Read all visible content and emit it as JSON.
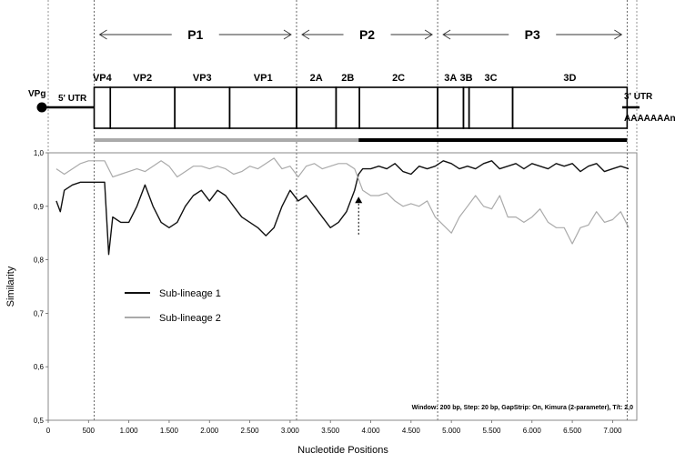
{
  "chart_data": {
    "type": "line",
    "xlabel": "Nucleotide Positions",
    "ylabel": "Similarity",
    "xlim": [
      0,
      7300
    ],
    "ylim": [
      0.5,
      1.0
    ],
    "x_ticks": [
      0,
      500,
      1000,
      1500,
      2000,
      2500,
      3000,
      3500,
      4000,
      4500,
      5000,
      5500,
      6000,
      6500,
      7000
    ],
    "x_tick_labels": [
      "0",
      "500",
      "1.000",
      "1.500",
      "2.000",
      "2.500",
      "3.000",
      "3.500",
      "4.000",
      "4.500",
      "5.000",
      "5.500",
      "6.000",
      "6.500",
      "7.000"
    ],
    "y_ticks": [
      0.5,
      0.6,
      0.7,
      0.8,
      0.9,
      1.0
    ],
    "y_tick_labels": [
      "0,5",
      "0,6",
      "0,7",
      "0,8",
      "0,9",
      "1,0"
    ],
    "grid": false,
    "legend_position": "middle-left",
    "series": [
      {
        "name": "Sub-lineage 1",
        "color": "#111111",
        "x": [
          100,
          150,
          200,
          300,
          400,
          500,
          600,
          700,
          750,
          800,
          900,
          1000,
          1100,
          1200,
          1300,
          1400,
          1500,
          1600,
          1700,
          1800,
          1900,
          2000,
          2100,
          2200,
          2300,
          2400,
          2500,
          2600,
          2700,
          2800,
          2900,
          3000,
          3100,
          3200,
          3300,
          3400,
          3500,
          3600,
          3700,
          3800,
          3850,
          3900,
          4000,
          4100,
          4200,
          4300,
          4400,
          4500,
          4600,
          4700,
          4800,
          4900,
          5000,
          5100,
          5200,
          5300,
          5400,
          5500,
          5600,
          5700,
          5800,
          5900,
          6000,
          6100,
          6200,
          6300,
          6400,
          6500,
          6600,
          6700,
          6800,
          6900,
          7000,
          7100,
          7200
        ],
        "y": [
          0.91,
          0.89,
          0.93,
          0.94,
          0.945,
          0.945,
          0.945,
          0.945,
          0.81,
          0.88,
          0.87,
          0.87,
          0.9,
          0.94,
          0.9,
          0.87,
          0.86,
          0.87,
          0.9,
          0.92,
          0.93,
          0.91,
          0.93,
          0.92,
          0.9,
          0.88,
          0.87,
          0.86,
          0.845,
          0.86,
          0.9,
          0.93,
          0.91,
          0.92,
          0.9,
          0.88,
          0.86,
          0.87,
          0.89,
          0.93,
          0.96,
          0.97,
          0.97,
          0.975,
          0.97,
          0.98,
          0.965,
          0.96,
          0.975,
          0.97,
          0.975,
          0.985,
          0.98,
          0.97,
          0.975,
          0.97,
          0.98,
          0.985,
          0.97,
          0.975,
          0.98,
          0.97,
          0.98,
          0.975,
          0.97,
          0.98,
          0.975,
          0.98,
          0.965,
          0.975,
          0.98,
          0.965,
          0.97,
          0.975,
          0.97
        ]
      },
      {
        "name": "Sub-lineage 2",
        "color": "#aaaaaa",
        "x": [
          100,
          200,
          300,
          400,
          500,
          600,
          700,
          800,
          900,
          1000,
          1100,
          1200,
          1300,
          1400,
          1500,
          1600,
          1700,
          1800,
          1900,
          2000,
          2100,
          2200,
          2300,
          2400,
          2500,
          2600,
          2700,
          2800,
          2900,
          3000,
          3100,
          3200,
          3300,
          3400,
          3500,
          3600,
          3700,
          3800,
          3900,
          4000,
          4100,
          4200,
          4300,
          4400,
          4500,
          4600,
          4700,
          4800,
          4900,
          5000,
          5100,
          5200,
          5300,
          5400,
          5500,
          5600,
          5700,
          5800,
          5900,
          6000,
          6100,
          6200,
          6300,
          6400,
          6500,
          6600,
          6700,
          6800,
          6900,
          7000,
          7100,
          7200
        ],
        "y": [
          0.97,
          0.96,
          0.97,
          0.98,
          0.985,
          0.985,
          0.985,
          0.955,
          0.96,
          0.965,
          0.97,
          0.965,
          0.975,
          0.985,
          0.975,
          0.955,
          0.965,
          0.975,
          0.975,
          0.97,
          0.975,
          0.97,
          0.96,
          0.965,
          0.975,
          0.97,
          0.98,
          0.99,
          0.97,
          0.975,
          0.955,
          0.975,
          0.98,
          0.97,
          0.975,
          0.98,
          0.98,
          0.97,
          0.93,
          0.92,
          0.92,
          0.925,
          0.91,
          0.9,
          0.905,
          0.9,
          0.91,
          0.88,
          0.865,
          0.85,
          0.88,
          0.9,
          0.92,
          0.9,
          0.895,
          0.92,
          0.88,
          0.88,
          0.87,
          0.88,
          0.895,
          0.87,
          0.86,
          0.86,
          0.83,
          0.86,
          0.865,
          0.89,
          0.87,
          0.875,
          0.89,
          0.86
        ]
      }
    ],
    "annotation": "Window:  200 bp, Step: 20 bp, GapStrip: On, Kimura (2-parameter), T/t: 2,0",
    "breakpoint_x": 3850,
    "boundaries_x": [
      570,
      3080,
      4830,
      7180
    ],
    "dashed_edges_x": [
      0,
      7300
    ]
  },
  "genome": {
    "vpg_label": "VPg",
    "utr5_label": "5' UTR",
    "utr3_label": "3' UTR",
    "polya_label": "AAAAAAAn",
    "regions": [
      {
        "label": "P1",
        "start": 570,
        "end": 3080
      },
      {
        "label": "P2",
        "start": 3080,
        "end": 4830
      },
      {
        "label": "P3",
        "start": 4830,
        "end": 7180
      }
    ],
    "genes": [
      {
        "label": "VP4",
        "start": 570,
        "end": 770
      },
      {
        "label": "VP2",
        "start": 770,
        "end": 1570
      },
      {
        "label": "VP3",
        "start": 1570,
        "end": 2250
      },
      {
        "label": "VP1",
        "start": 2250,
        "end": 3080
      },
      {
        "label": "2A",
        "start": 3080,
        "end": 3570
      },
      {
        "label": "2B",
        "start": 3570,
        "end": 3860
      },
      {
        "label": "2C",
        "start": 3860,
        "end": 4830
      },
      {
        "label": "3A",
        "start": 4830,
        "end": 5150
      },
      {
        "label": "3B",
        "start": 5150,
        "end": 5220
      },
      {
        "label": "3C",
        "start": 5220,
        "end": 5760
      },
      {
        "label": "3D",
        "start": 5760,
        "end": 7180
      }
    ],
    "bars": [
      {
        "color": "#aaaaaa",
        "start": 570,
        "end": 3850
      },
      {
        "color": "#000000",
        "start": 3850,
        "end": 7180
      }
    ]
  }
}
